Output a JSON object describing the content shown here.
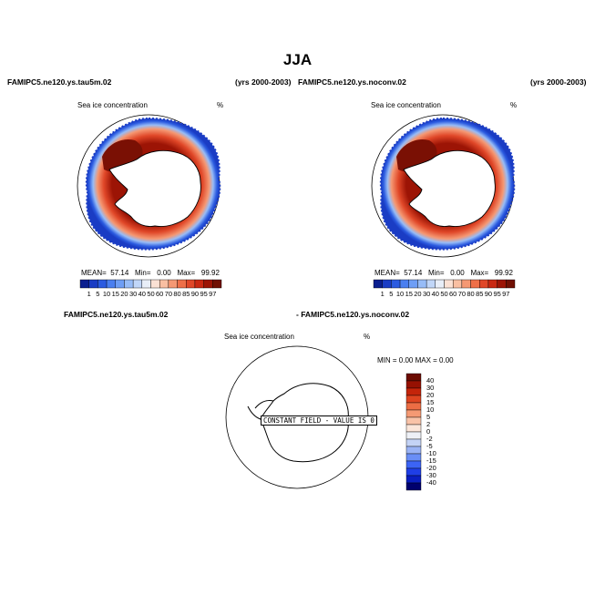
{
  "title": "JJA",
  "top_left": {
    "case": "FAMIPC5.ne120.ys.tau5m.02",
    "years": "(yrs 2000-2003)",
    "field": "Sea ice concentration",
    "units": "%",
    "stats": {
      "mean_label": "MEAN=",
      "mean": "57.14",
      "min_label": "Min=",
      "min": "0.00",
      "max_label": "Max=",
      "max": "99.92"
    },
    "colorbar_labels": [
      "1",
      "5",
      "10",
      "15",
      "20",
      "30",
      "40",
      "50",
      "60",
      "70",
      "80",
      "85",
      "90",
      "95",
      "97"
    ]
  },
  "top_right": {
    "case": "FAMIPC5.ne120.ys.noconv.02",
    "years": "(yrs 2000-2003)",
    "field": "Sea ice concentration",
    "units": "%",
    "stats": {
      "mean_label": "MEAN=",
      "mean": "57.14",
      "min_label": "Min=",
      "min": "0.00",
      "max_label": "Max=",
      "max": "99.92"
    },
    "colorbar_labels": [
      "1",
      "5",
      "10",
      "15",
      "20",
      "30",
      "40",
      "50",
      "60",
      "70",
      "80",
      "85",
      "90",
      "95",
      "97"
    ]
  },
  "difference": {
    "case_a": "FAMIPC5.ne120.ys.tau5m.02",
    "case_b": "- FAMIPC5.ne120.ys.noconv.02",
    "field": "Sea ice concentration",
    "units": "%",
    "minmax": "MIN =     0.00  MAX =     0.00",
    "constant_label": "CONSTANT FIELD - VALUE IS 0",
    "colorbar_labels": [
      "40",
      "30",
      "20",
      "15",
      "10",
      "5",
      "2",
      "0",
      "-2",
      "-5",
      "-10",
      "-15",
      "-20",
      "-30",
      "-40"
    ]
  },
  "colors": {
    "abs_scale": [
      "#0b1f8f",
      "#1a3cc4",
      "#2b5be0",
      "#4a7ff0",
      "#6e9ef5",
      "#97bcf7",
      "#c0d6f8",
      "#e8eef8",
      "#fbe1d4",
      "#f9bfa2",
      "#f59873",
      "#ee6f48",
      "#e04728",
      "#c92812",
      "#9c1405",
      "#701003"
    ],
    "diff_scale": [
      "#00006e",
      "#0a1ec0",
      "#1f3ee6",
      "#3c64f5",
      "#6a8ef6",
      "#9ab3f5",
      "#c4d3f6",
      "#eef0f6",
      "#fbe6da",
      "#f9c3a8",
      "#f59a74",
      "#ec6d44",
      "#de4420",
      "#c4240a",
      "#961102",
      "#6c0c02"
    ]
  }
}
